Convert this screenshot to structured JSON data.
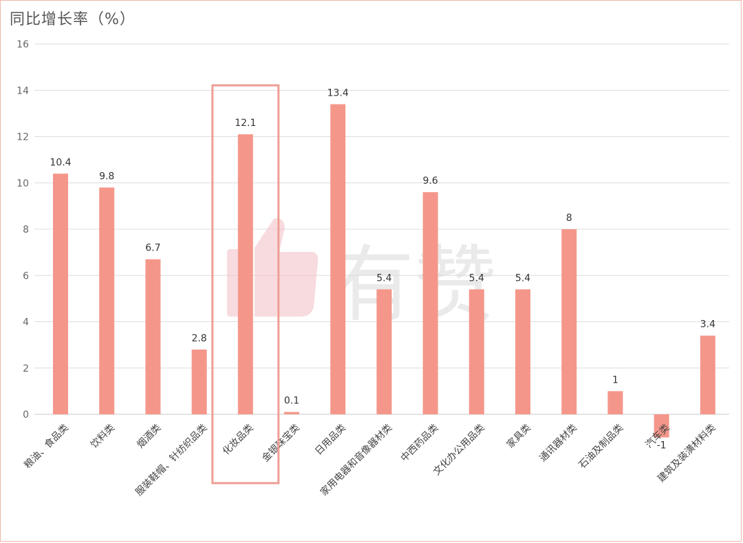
{
  "chart_data": {
    "type": "bar",
    "title": "同比增长率（%）",
    "categories": [
      "粮油、食品类",
      "饮料类",
      "烟酒类",
      "服装鞋帽、针纺织品类",
      "化妆品类",
      "金银珠宝类",
      "日用品类",
      "家用电器和音像器材类",
      "中西药品类",
      "文化办公用品类",
      "家具类",
      "通讯器材类",
      "石油及制品类",
      "汽车类",
      "建筑及装潢材料类"
    ],
    "values": [
      10.4,
      9.8,
      6.7,
      2.8,
      12.1,
      0.1,
      13.4,
      5.4,
      9.6,
      5.4,
      5.4,
      8,
      1,
      -1,
      3.4
    ],
    "value_labels": [
      "10.4",
      "9.8",
      "6.7",
      "2.8",
      "12.1",
      "0.1",
      "13.4",
      "5.4",
      "9.6",
      "5.4",
      "5.4",
      "8",
      "1",
      "-1",
      "3.4"
    ],
    "ylim": [
      0,
      16
    ],
    "yticks": [
      0,
      2,
      4,
      6,
      8,
      10,
      12,
      14,
      16
    ],
    "grid": true,
    "bar_color": "#f4978a",
    "highlight_index": 4,
    "highlight_color": "#ee9e93"
  },
  "watermark": {
    "text": "有赞",
    "color": "#d9d9d9",
    "icon": "thumbs-up-icon",
    "icon_color": "#f4c3c9"
  }
}
